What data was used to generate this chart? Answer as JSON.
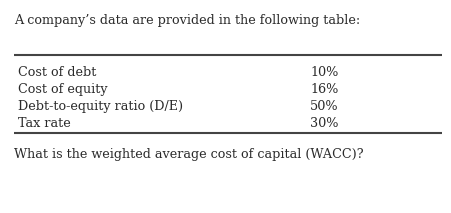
{
  "intro_text": "A company’s data are provided in the following table:",
  "rows": [
    [
      "Cost of debt",
      "10%"
    ],
    [
      "Cost of equity",
      "16%"
    ],
    [
      "Debt-to-equity ratio (D/E)",
      "50%"
    ],
    [
      "Tax rate",
      "30%"
    ]
  ],
  "question_text": "What is the weighted average cost of capital (WACC)?",
  "bg_color": "#ffffff",
  "text_color": "#2a2a2a",
  "font_size": 9.2,
  "line_color": "#444444",
  "fig_width": 4.52,
  "fig_height": 2.13,
  "dpi": 100
}
